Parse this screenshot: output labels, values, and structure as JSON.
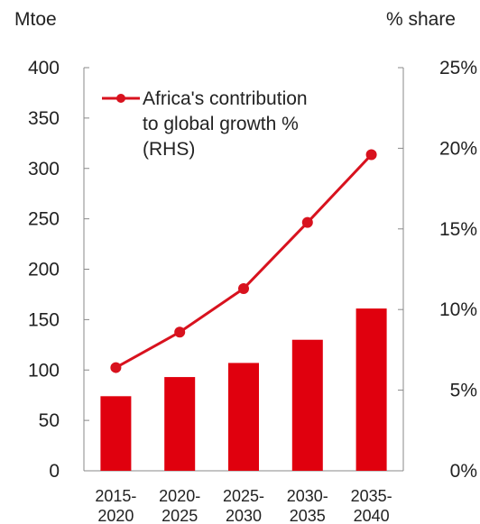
{
  "chart_data": {
    "type": "bar+line",
    "title": "",
    "left_axis": {
      "unit_label": "Mtoe",
      "ylim": [
        0,
        400
      ],
      "ticks": [
        "400",
        "350",
        "300",
        "250",
        "200",
        "150",
        "100",
        "50",
        "0"
      ]
    },
    "right_axis": {
      "unit_label": "% share",
      "ylim": [
        0,
        25
      ],
      "ticks": [
        "25%",
        "20%",
        "15%",
        "10%",
        "5%",
        "0%"
      ]
    },
    "categories": [
      {
        "top": "2015-",
        "bottom": "2020"
      },
      {
        "top": "2020-",
        "bottom": "2025"
      },
      {
        "top": "2025-",
        "bottom": "2030"
      },
      {
        "top": "2030-",
        "bottom": "2035"
      },
      {
        "top": "2035-",
        "bottom": "2040"
      }
    ],
    "bars": {
      "axis": "left",
      "values": [
        74,
        93,
        107,
        130,
        161
      ]
    },
    "line": {
      "axis": "right",
      "legend_lines": [
        "Africa's contribution",
        "to global growth %",
        "(RHS)"
      ],
      "values": [
        6.4,
        8.6,
        11.3,
        15.4,
        19.6
      ]
    },
    "legend_placement": "top-left",
    "grid": false,
    "colors": {
      "bar": "#e0000e",
      "line": "#d8121e",
      "axis": "#888888",
      "text": "#222222"
    }
  }
}
